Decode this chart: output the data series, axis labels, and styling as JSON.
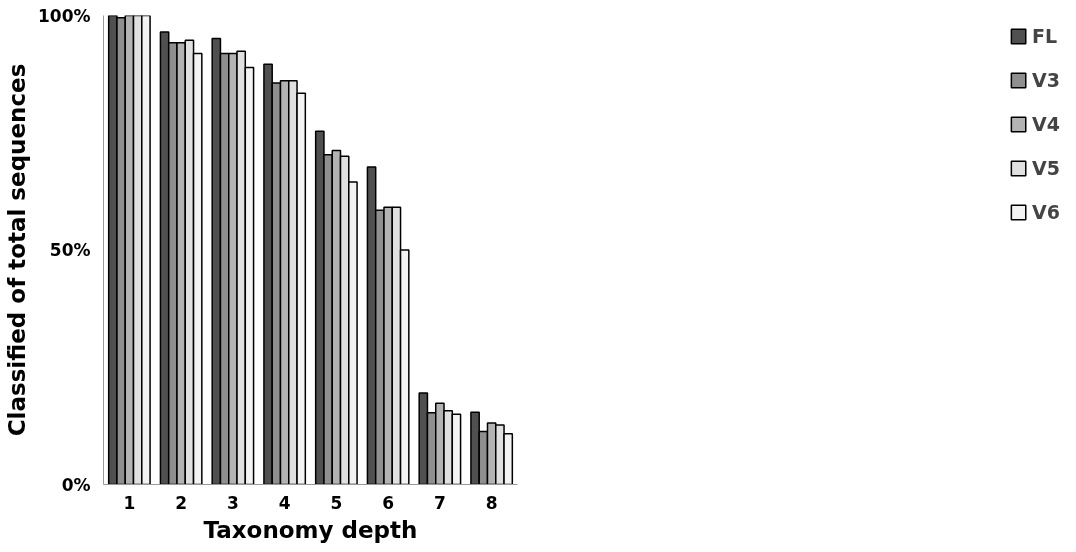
{
  "chart_data": {
    "type": "bar",
    "xlabel": "Taxonomy depth",
    "ylabel": "Classified of total sequences",
    "categories": [
      "1",
      "2",
      "3",
      "4",
      "5",
      "6",
      "7",
      "8"
    ],
    "series": [
      {
        "name": "FL",
        "color": "#505050",
        "values": [
          100,
          96.5,
          95.1,
          89.6,
          75.3,
          67.7,
          19.5,
          15.4
        ]
      },
      {
        "name": "V3",
        "color": "#8f8f8f",
        "values": [
          99.5,
          94.2,
          91.9,
          85.6,
          70.3,
          58.5,
          15.3,
          11.3
        ]
      },
      {
        "name": "V4",
        "color": "#b3b3b3",
        "values": [
          100,
          94.2,
          91.9,
          86.1,
          71.2,
          59.1,
          17.3,
          13.1
        ]
      },
      {
        "name": "V5",
        "color": "#e0e0e0",
        "values": [
          100,
          94.7,
          92.4,
          86.1,
          70.0,
          59.1,
          15.7,
          12.7
        ]
      },
      {
        "name": "V6",
        "color": "#f3f3f3",
        "values": [
          100,
          91.9,
          88.9,
          83.4,
          64.5,
          50.0,
          15.0,
          10.8
        ]
      }
    ],
    "ylim": [
      0,
      100
    ],
    "yticks": [
      {
        "value": 0,
        "label": "0%"
      },
      {
        "value": 50,
        "label": "50%"
      },
      {
        "value": 100,
        "label": "100%"
      }
    ],
    "grid": false,
    "legend": "right"
  }
}
